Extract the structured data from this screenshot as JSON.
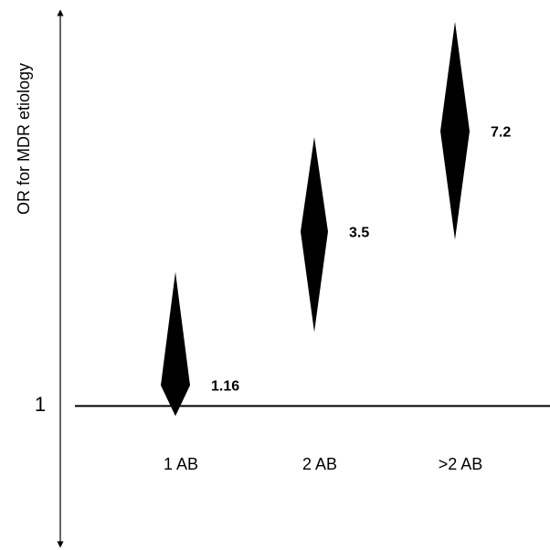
{
  "chart_data": {
    "type": "forest",
    "ylabel": "OR for MDR etiology",
    "reference_line": 1,
    "reference_label": "1",
    "categories": [
      "1 AB",
      "2 AB",
      ">2 AB"
    ],
    "values": [
      1.16,
      3.5,
      7.2
    ],
    "value_labels": [
      "1.16",
      "3.5",
      "7.2"
    ],
    "ci_low": [
      0.93,
      1.7,
      3.3
    ],
    "ci_high": [
      2.62,
      6.9,
      15.8
    ],
    "ylim": [
      0.36,
      17.3
    ],
    "grid": false,
    "legend": "none",
    "marker_color": "#000000"
  }
}
